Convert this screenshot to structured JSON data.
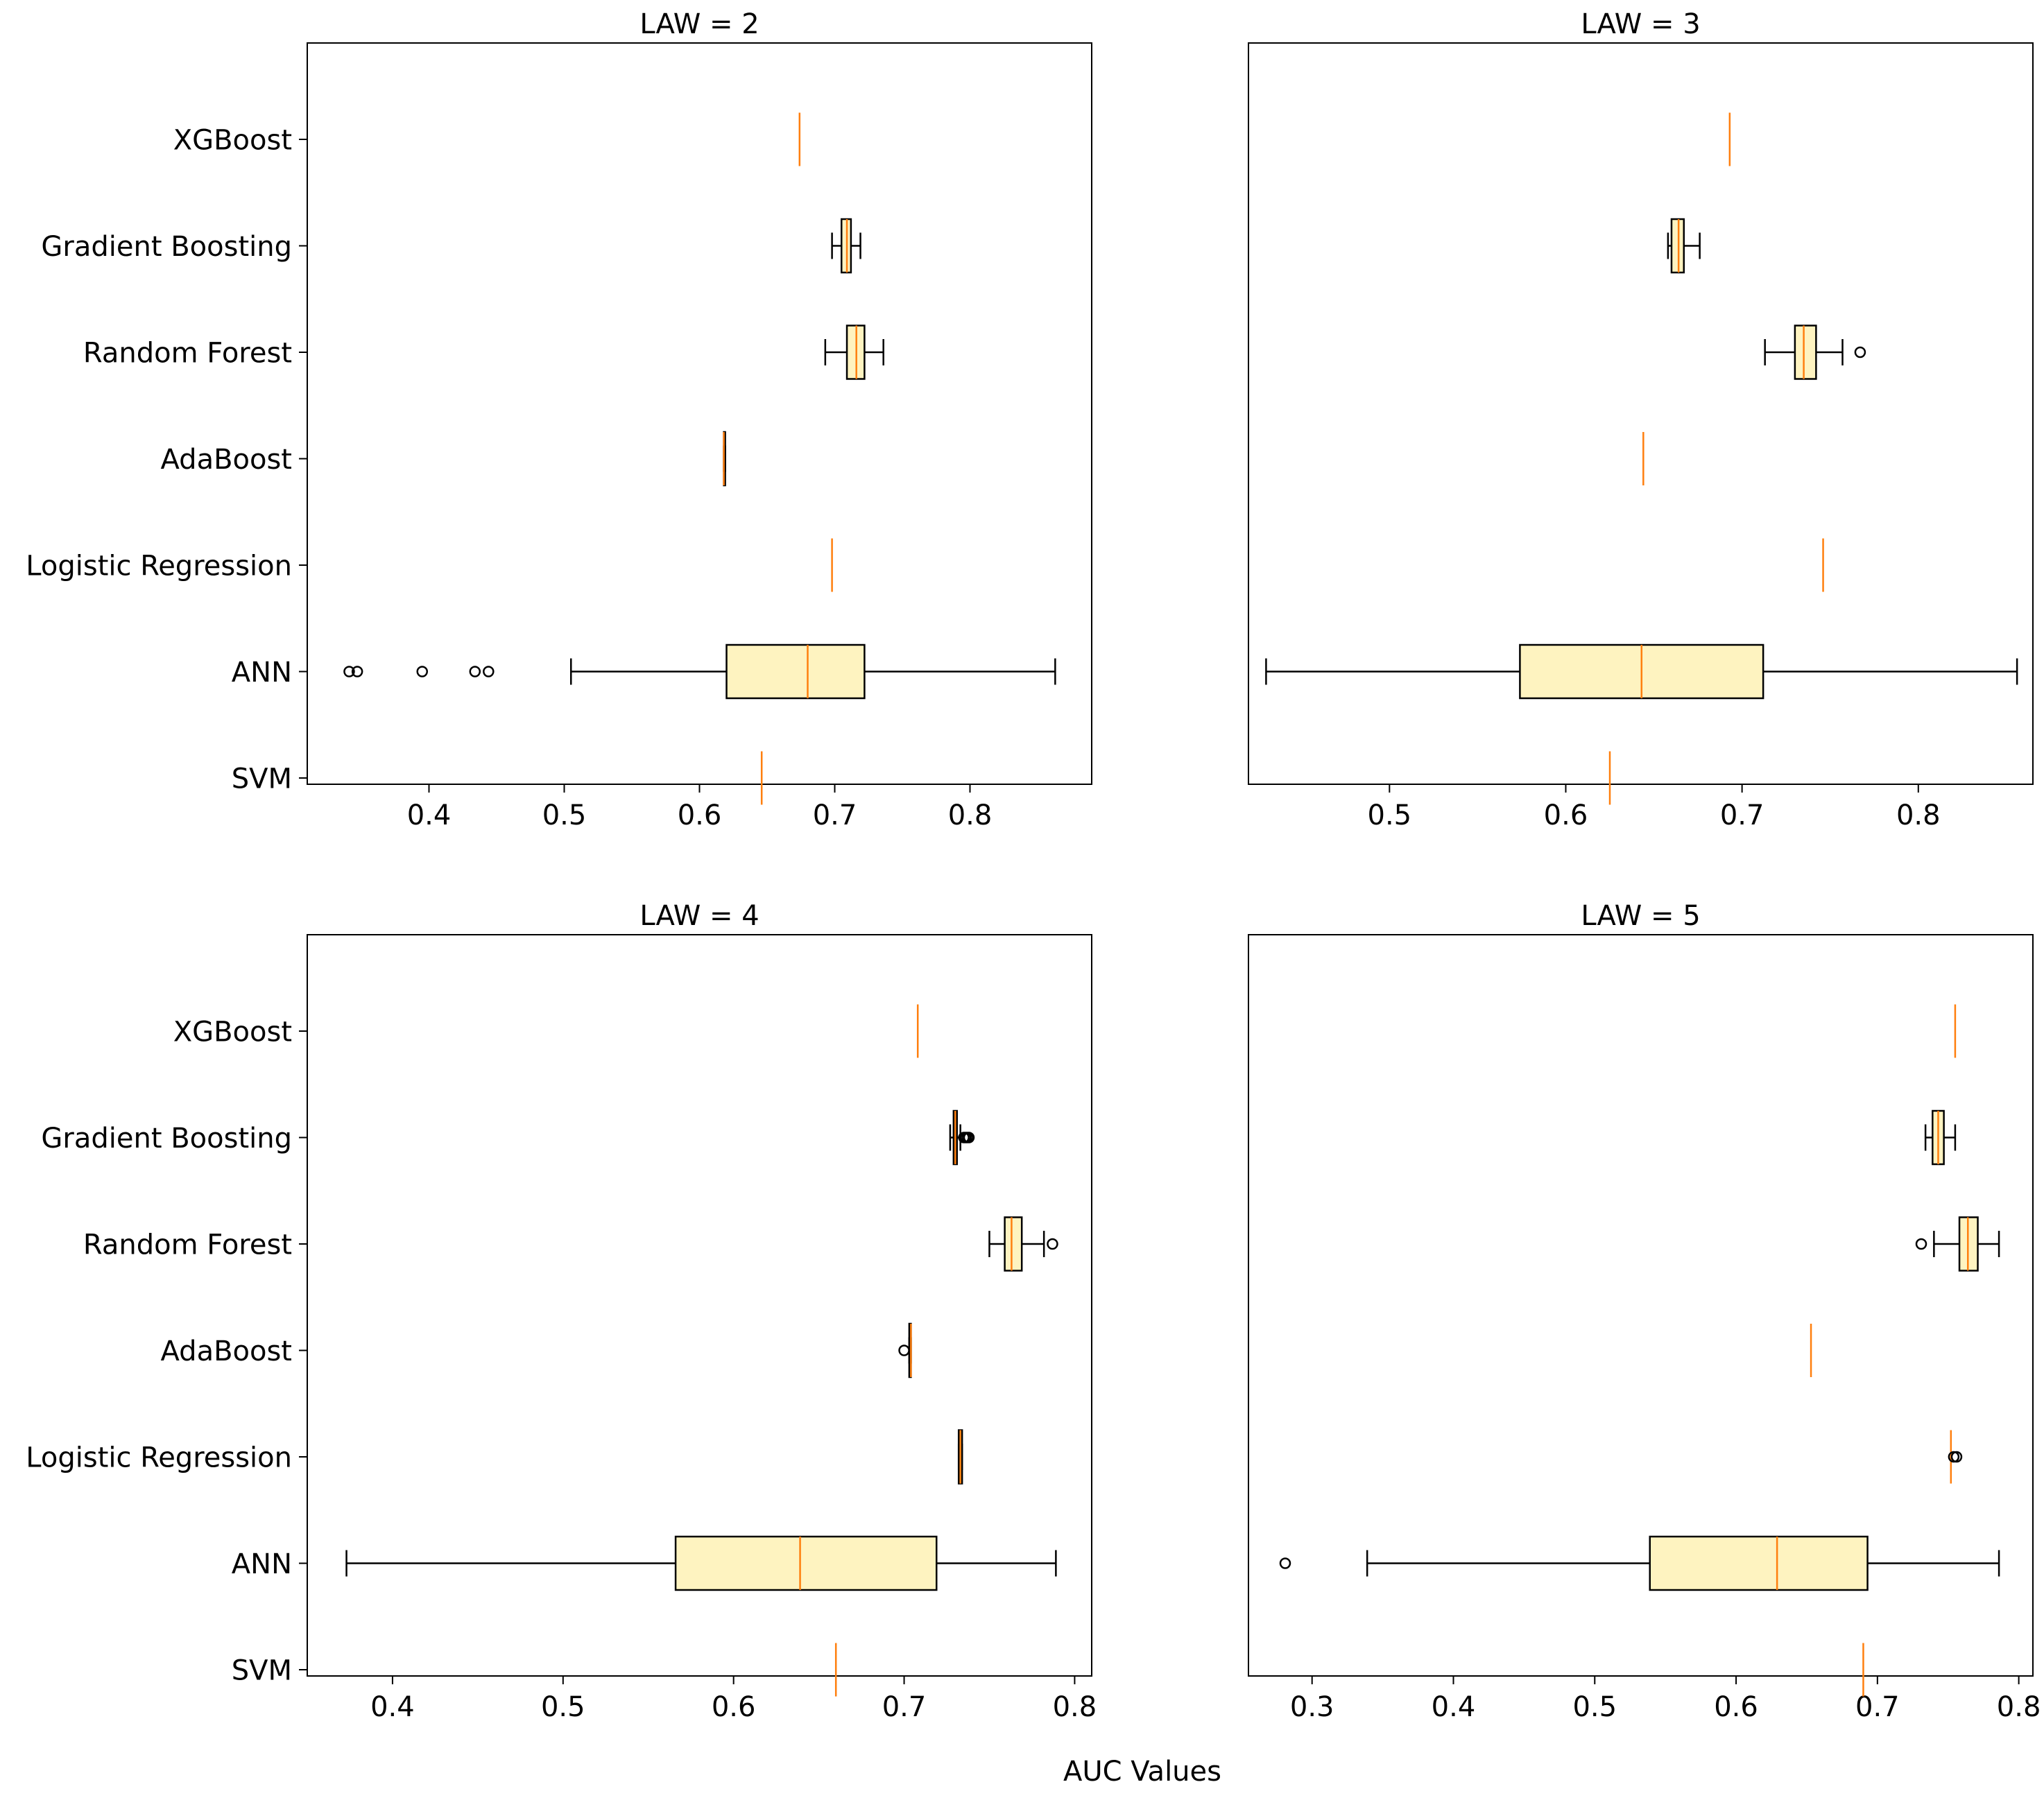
{
  "figure": {
    "xlabel": "AUC Values",
    "colors": {
      "box_fill": "#fef3c0",
      "median": "#ff7f0e",
      "stroke": "#000000"
    }
  },
  "chart_data": [
    {
      "type": "boxplot",
      "title": "LAW = 2",
      "orientation": "horizontal",
      "categories": [
        "XGBoost",
        "Gradient Boosting",
        "Random Forest",
        "AdaBoost",
        "Logistic Regression",
        "ANN",
        "SVM"
      ],
      "xlim": [
        0.31,
        0.89
      ],
      "xticks": [
        0.4,
        0.5,
        0.6,
        0.7,
        0.8
      ],
      "xtick_labels": [
        "0.4",
        "0.5",
        "0.6",
        "0.7",
        "0.8"
      ],
      "series": [
        {
          "name": "XGBoost",
          "whislo": 0.674,
          "q1": 0.674,
          "med": 0.674,
          "q3": 0.674,
          "whishi": 0.674,
          "fliers": []
        },
        {
          "name": "Gradient Boosting",
          "whislo": 0.698,
          "q1": 0.705,
          "med": 0.709,
          "q3": 0.712,
          "whishi": 0.719,
          "fliers": []
        },
        {
          "name": "Random Forest",
          "whislo": 0.693,
          "q1": 0.709,
          "med": 0.716,
          "q3": 0.722,
          "whishi": 0.736,
          "fliers": []
        },
        {
          "name": "AdaBoost",
          "whislo": 0.618,
          "q1": 0.618,
          "med": 0.618,
          "q3": 0.619,
          "whishi": 0.619,
          "fliers": []
        },
        {
          "name": "Logistic Regression",
          "whislo": 0.698,
          "q1": 0.698,
          "med": 0.698,
          "q3": 0.698,
          "whishi": 0.698,
          "fliers": []
        },
        {
          "name": "ANN",
          "whislo": 0.505,
          "q1": 0.62,
          "med": 0.68,
          "q3": 0.722,
          "whishi": 0.863,
          "fliers": [
            0.341,
            0.347,
            0.395,
            0.434,
            0.444
          ]
        },
        {
          "name": "SVM",
          "whislo": 0.646,
          "q1": 0.646,
          "med": 0.646,
          "q3": 0.646,
          "whishi": 0.646,
          "fliers": []
        }
      ]
    },
    {
      "type": "boxplot",
      "title": "LAW = 3",
      "orientation": "horizontal",
      "categories": [
        "XGBoost",
        "Gradient Boosting",
        "Random Forest",
        "AdaBoost",
        "Logistic Regression",
        "ANN",
        "SVM"
      ],
      "xlim": [
        0.42,
        0.865
      ],
      "xticks": [
        0.5,
        0.6,
        0.7,
        0.8
      ],
      "xtick_labels": [
        "0.5",
        "0.6",
        "0.7",
        "0.8"
      ],
      "series": [
        {
          "name": "XGBoost",
          "whislo": 0.693,
          "q1": 0.693,
          "med": 0.693,
          "q3": 0.693,
          "whishi": 0.693,
          "fliers": []
        },
        {
          "name": "Gradient Boosting",
          "whislo": 0.658,
          "q1": 0.66,
          "med": 0.664,
          "q3": 0.667,
          "whishi": 0.676,
          "fliers": []
        },
        {
          "name": "Random Forest",
          "whislo": 0.713,
          "q1": 0.73,
          "med": 0.735,
          "q3": 0.742,
          "whishi": 0.757,
          "fliers": [
            0.767
          ]
        },
        {
          "name": "AdaBoost",
          "whislo": 0.644,
          "q1": 0.644,
          "med": 0.644,
          "q3": 0.644,
          "whishi": 0.644,
          "fliers": []
        },
        {
          "name": "Logistic Regression",
          "whislo": 0.746,
          "q1": 0.746,
          "med": 0.746,
          "q3": 0.746,
          "whishi": 0.746,
          "fliers": []
        },
        {
          "name": "ANN",
          "whislo": 0.43,
          "q1": 0.574,
          "med": 0.643,
          "q3": 0.712,
          "whishi": 0.856,
          "fliers": []
        },
        {
          "name": "SVM",
          "whislo": 0.625,
          "q1": 0.625,
          "med": 0.625,
          "q3": 0.625,
          "whishi": 0.625,
          "fliers": []
        }
      ]
    },
    {
      "type": "boxplot",
      "title": "LAW = 4",
      "orientation": "horizontal",
      "categories": [
        "XGBoost",
        "Gradient Boosting",
        "Random Forest",
        "AdaBoost",
        "Logistic Regression",
        "ANN",
        "SVM"
      ],
      "xlim": [
        0.35,
        0.81
      ],
      "xticks": [
        0.4,
        0.5,
        0.6,
        0.7,
        0.8
      ],
      "xtick_labels": [
        "0.4",
        "0.5",
        "0.6",
        "0.7",
        "0.8"
      ],
      "series": [
        {
          "name": "XGBoost",
          "whislo": 0.708,
          "q1": 0.708,
          "med": 0.708,
          "q3": 0.708,
          "whishi": 0.708,
          "fliers": []
        },
        {
          "name": "Gradient Boosting",
          "whislo": 0.727,
          "q1": 0.729,
          "med": 0.73,
          "q3": 0.731,
          "whishi": 0.733,
          "fliers": [
            0.735,
            0.736,
            0.737,
            0.738
          ]
        },
        {
          "name": "Random Forest",
          "whislo": 0.75,
          "q1": 0.759,
          "med": 0.763,
          "q3": 0.769,
          "whishi": 0.782,
          "fliers": [
            0.787
          ]
        },
        {
          "name": "AdaBoost",
          "whislo": 0.703,
          "q1": 0.703,
          "med": 0.704,
          "q3": 0.704,
          "whishi": 0.704,
          "fliers": [
            0.7
          ]
        },
        {
          "name": "Logistic Regression",
          "whislo": 0.732,
          "q1": 0.732,
          "med": 0.733,
          "q3": 0.734,
          "whishi": 0.734,
          "fliers": []
        },
        {
          "name": "ANN",
          "whislo": 0.373,
          "q1": 0.566,
          "med": 0.639,
          "q3": 0.719,
          "whishi": 0.789,
          "fliers": []
        },
        {
          "name": "SVM",
          "whislo": 0.66,
          "q1": 0.66,
          "med": 0.66,
          "q3": 0.66,
          "whishi": 0.66,
          "fliers": []
        }
      ]
    },
    {
      "type": "boxplot",
      "title": "LAW = 5",
      "orientation": "horizontal",
      "categories": [
        "XGBoost",
        "Gradient Boosting",
        "Random Forest",
        "AdaBoost",
        "Logistic Regression",
        "ANN",
        "SVM"
      ],
      "xlim": [
        0.255,
        0.81
      ],
      "xticks": [
        0.3,
        0.4,
        0.5,
        0.6,
        0.7,
        0.8
      ],
      "xtick_labels": [
        "0.3",
        "0.4",
        "0.5",
        "0.6",
        "0.7",
        "0.8"
      ],
      "series": [
        {
          "name": "XGBoost",
          "whislo": 0.755,
          "q1": 0.755,
          "med": 0.755,
          "q3": 0.755,
          "whishi": 0.755,
          "fliers": []
        },
        {
          "name": "Gradient Boosting",
          "whislo": 0.734,
          "q1": 0.739,
          "med": 0.743,
          "q3": 0.747,
          "whishi": 0.755,
          "fliers": []
        },
        {
          "name": "Random Forest",
          "whislo": 0.74,
          "q1": 0.758,
          "med": 0.764,
          "q3": 0.771,
          "whishi": 0.786,
          "fliers": [
            0.731
          ]
        },
        {
          "name": "AdaBoost",
          "whislo": 0.653,
          "q1": 0.653,
          "med": 0.653,
          "q3": 0.653,
          "whishi": 0.653,
          "fliers": []
        },
        {
          "name": "Logistic Regression",
          "whislo": 0.752,
          "q1": 0.752,
          "med": 0.752,
          "q3": 0.752,
          "whishi": 0.752,
          "fliers": [
            0.754,
            0.756
          ]
        },
        {
          "name": "ANN",
          "whislo": 0.339,
          "q1": 0.539,
          "med": 0.629,
          "q3": 0.693,
          "whishi": 0.786,
          "fliers": [
            0.281
          ]
        },
        {
          "name": "SVM",
          "whislo": 0.69,
          "q1": 0.69,
          "med": 0.69,
          "q3": 0.69,
          "whishi": 0.69,
          "fliers": []
        }
      ]
    }
  ]
}
